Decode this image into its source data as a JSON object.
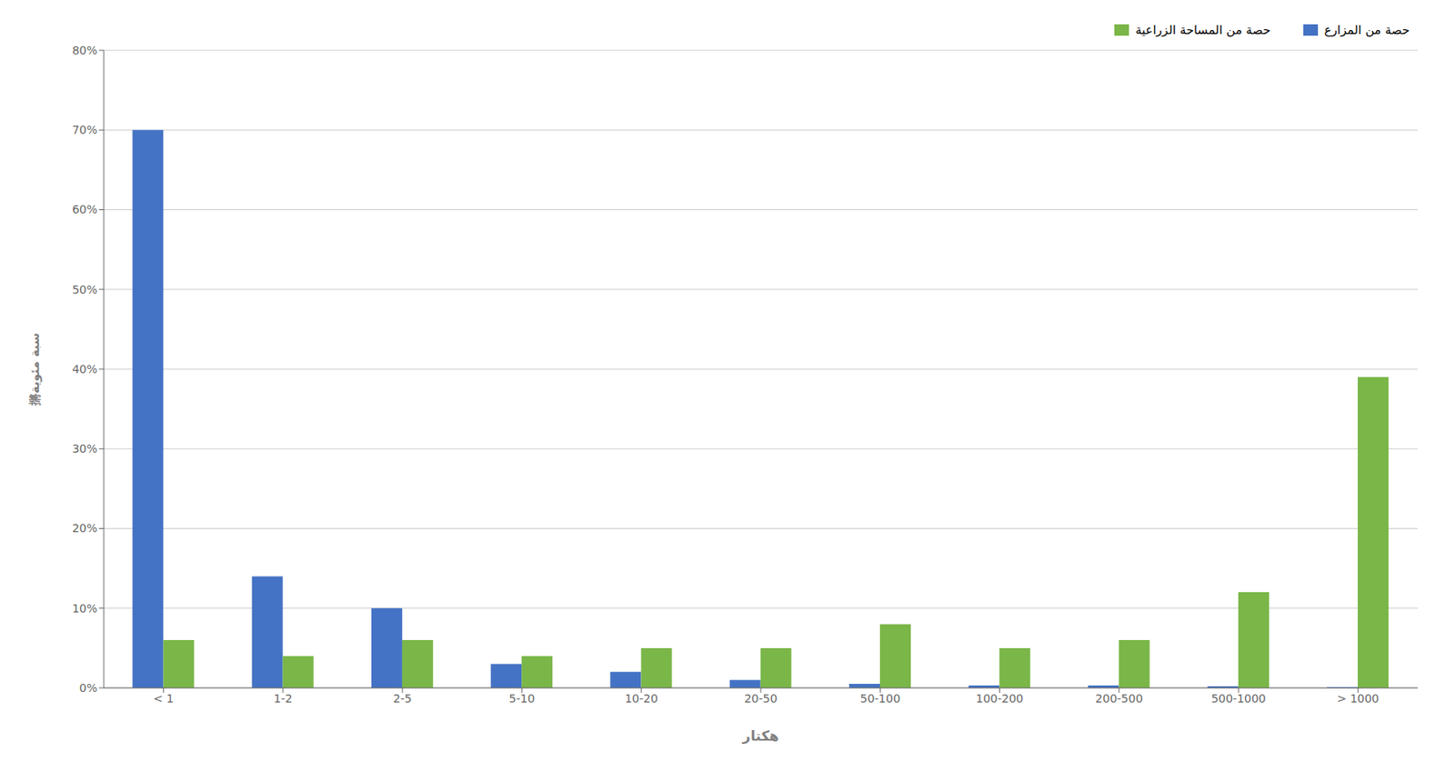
{
  "chart_data": {
    "type": "bar",
    "categories": [
      "< 1",
      "1-2",
      "2-5",
      "5-10",
      "10-20",
      "20-50",
      "50-100",
      "100-200",
      "200-500",
      "500-1000",
      "> 1000"
    ],
    "series": [
      {
        "name": "حصة من المزارع",
        "color": "#4472C4",
        "values": [
          70,
          14,
          10,
          3,
          2,
          1,
          0.5,
          0.3,
          0.3,
          0.2,
          0.1
        ]
      },
      {
        "name": "حصة من المساحة الزراعية",
        "color": "#7AB648",
        "values": [
          6,
          4,
          6,
          4,
          5,
          5,
          8,
          5,
          6,
          12,
          39
        ]
      }
    ],
    "xlabel": "هكتار",
    "ylabel": "摪سبة مئوية",
    "ylim": [
      0,
      80
    ],
    "yticks": [
      {
        "value": 0,
        "label": "0%"
      },
      {
        "value": 10,
        "label": "10%"
      },
      {
        "value": 20,
        "label": "20%"
      },
      {
        "value": 30,
        "label": "30%"
      },
      {
        "value": 40,
        "label": "40%"
      },
      {
        "value": 50,
        "label": "50%"
      },
      {
        "value": 60,
        "label": "60%"
      },
      {
        "value": 70,
        "label": "70%"
      },
      {
        "value": 80,
        "label": "80%"
      }
    ],
    "grid": true,
    "legend": "upper right"
  }
}
